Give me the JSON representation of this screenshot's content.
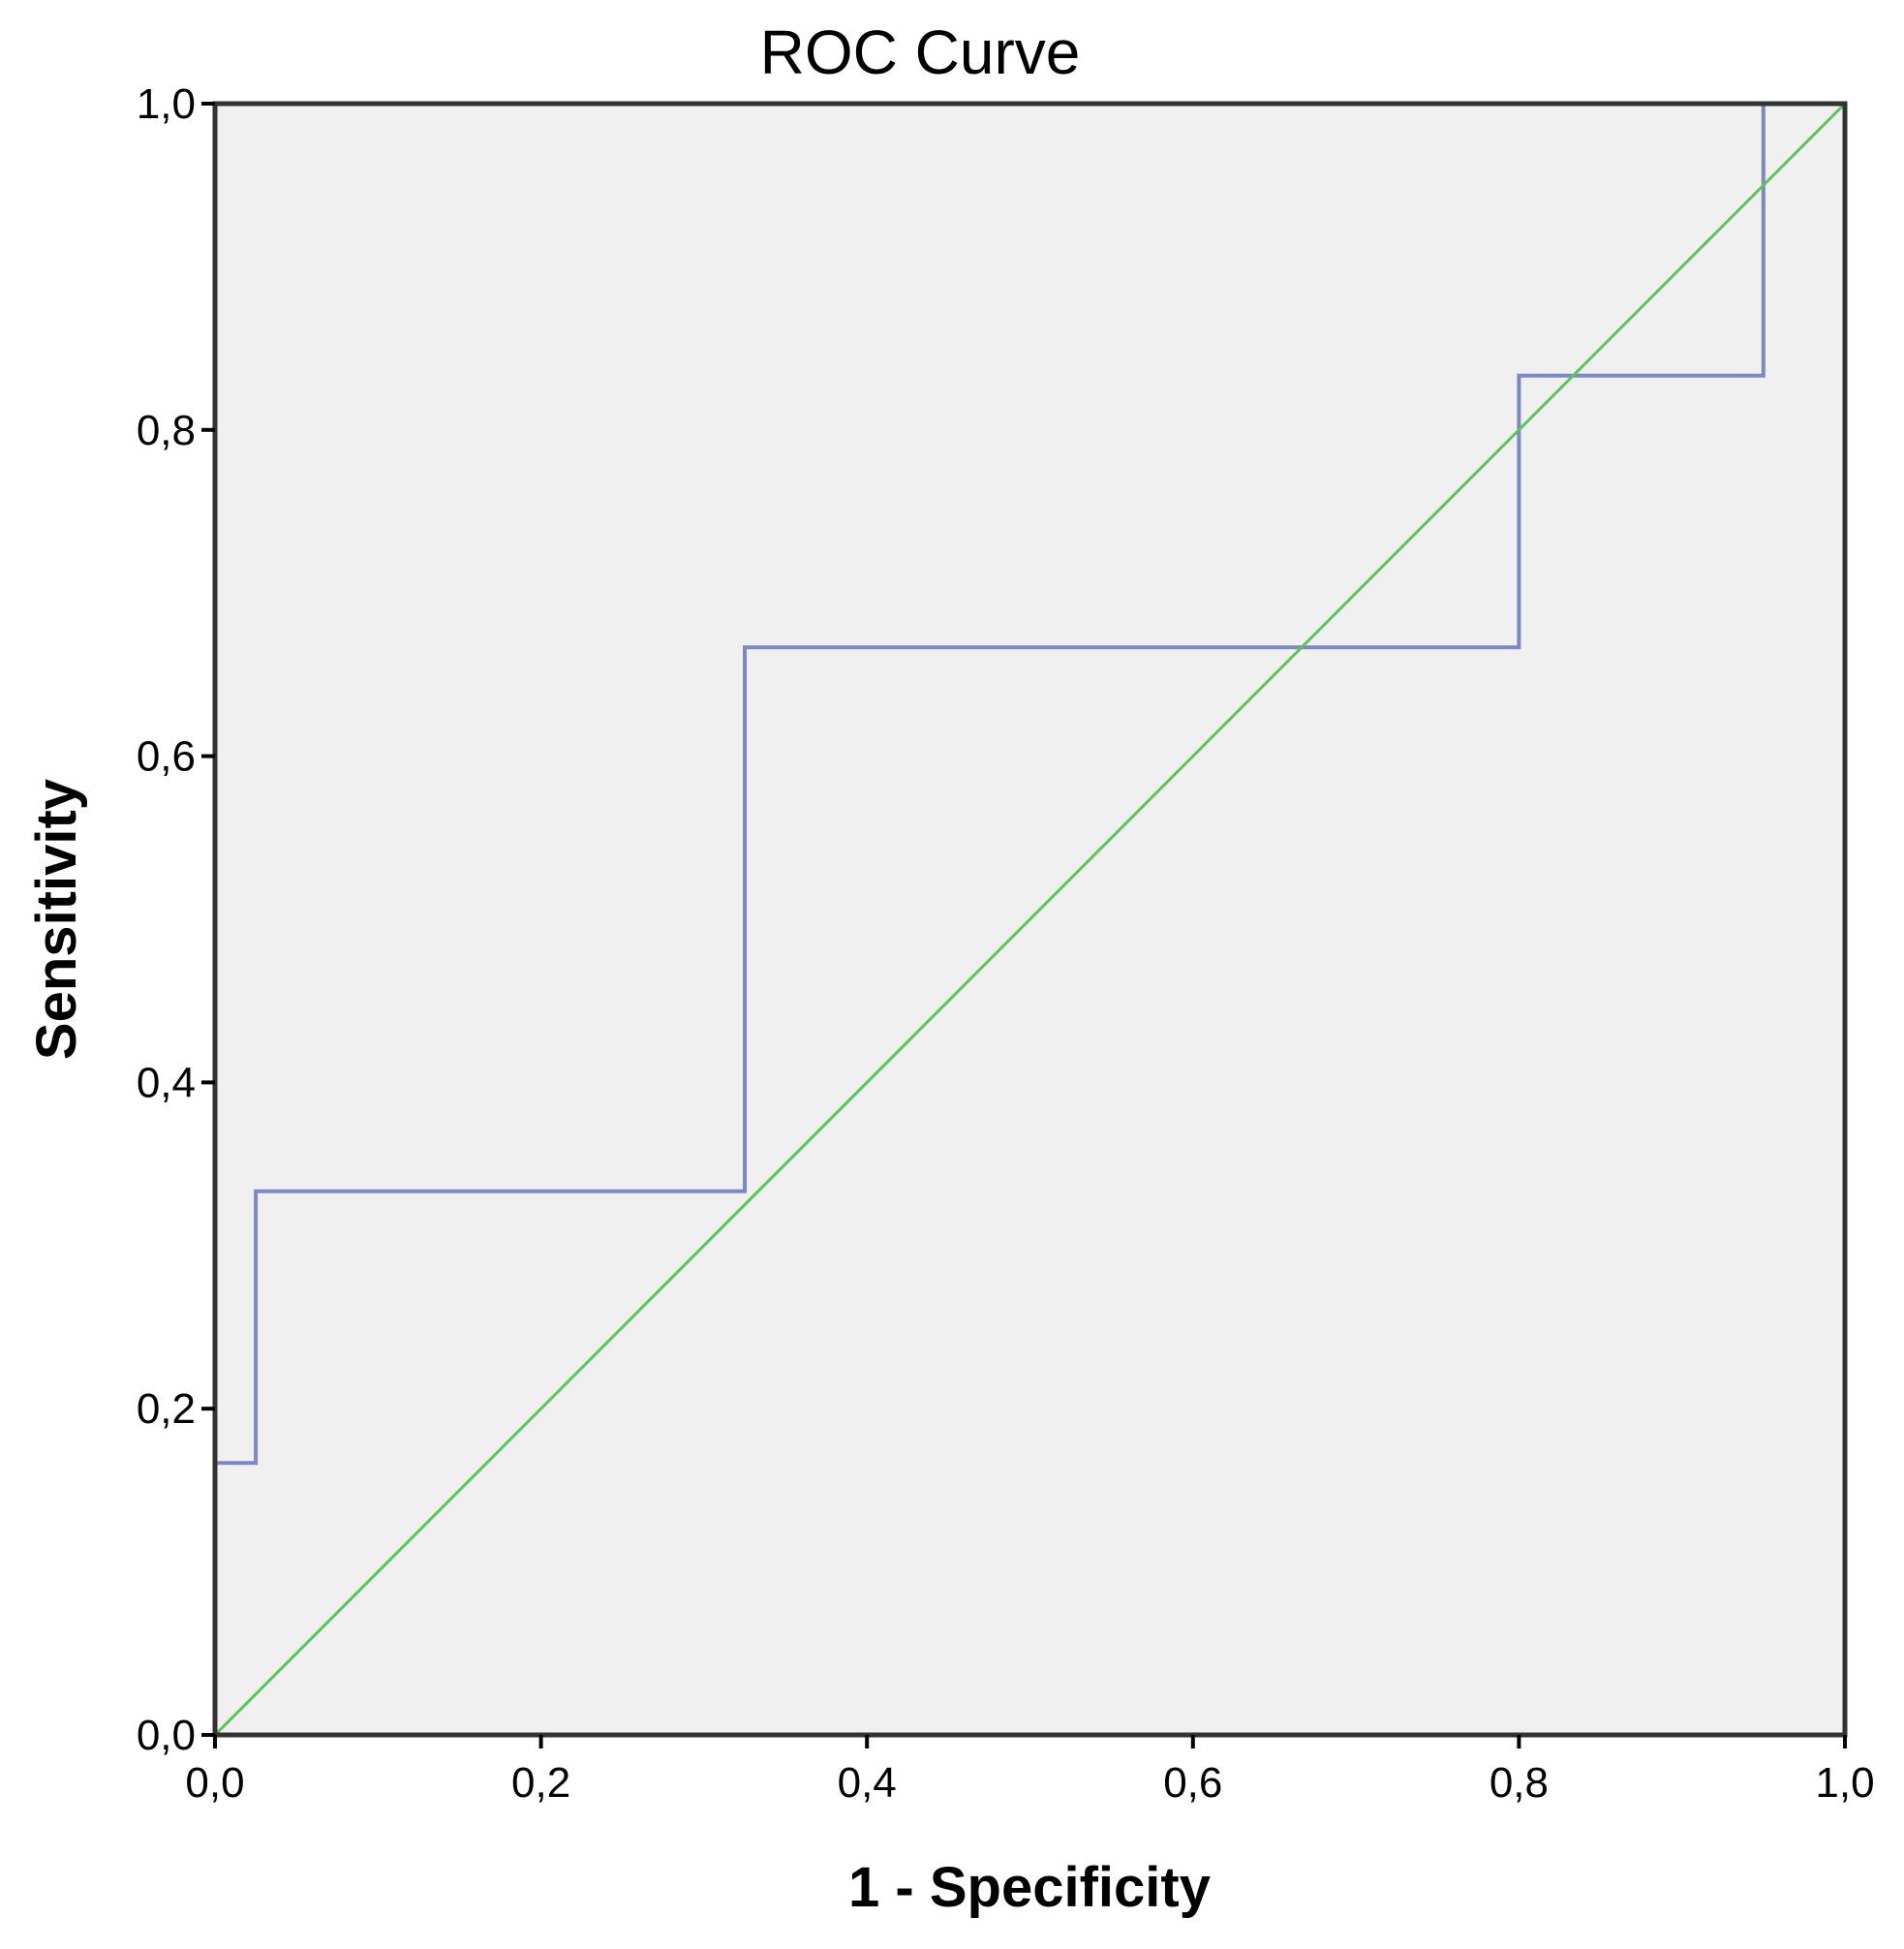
{
  "chart_data": {
    "type": "line",
    "title": "ROC Curve",
    "xlabel": "1 - Specificity",
    "ylabel": "Sensitivity",
    "xlim": [
      0,
      1
    ],
    "ylim": [
      0,
      1
    ],
    "x_ticks": [
      "0,0",
      "0,2",
      "0,4",
      "0,6",
      "0,8",
      "1,0"
    ],
    "y_ticks": [
      "0,0",
      "0,2",
      "0,4",
      "0,6",
      "0,8",
      "1,0"
    ],
    "x_tick_values": [
      0,
      0.2,
      0.4,
      0.6,
      0.8,
      1.0
    ],
    "y_tick_values": [
      0,
      0.2,
      0.4,
      0.6,
      0.8,
      1.0
    ],
    "grid": false,
    "background_color": "#f0f0f0",
    "series": [
      {
        "color": "#7b88c4",
        "x": [
          0,
          0,
          0.025,
          0.025,
          0.325,
          0.325,
          0.8,
          0.8,
          0.95,
          0.95,
          1.0
        ],
        "y": [
          0,
          0.1667,
          0.1667,
          0.3333,
          0.3333,
          0.6667,
          0.6667,
          0.8333,
          0.8333,
          1.0,
          1.0
        ]
      },
      {
        "color": "#5cc45c",
        "x": [
          0,
          1
        ],
        "y": [
          0,
          1
        ]
      }
    ]
  }
}
